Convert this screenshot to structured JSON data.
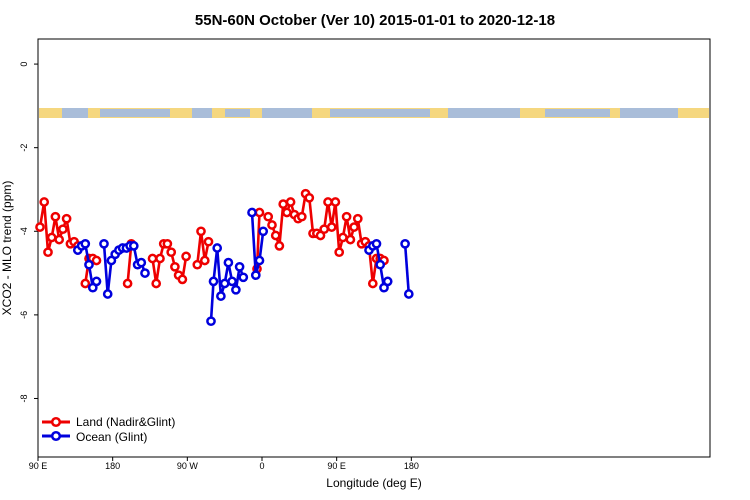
{
  "chart_data": {
    "type": "line",
    "title": "55N-60N October (Ver 10)   2015-01-01 to 2020-12-18",
    "xlabel": "Longitude (deg E)",
    "ylabel": "XCO2 - MLO trend (ppm)",
    "xlim": [
      -90,
      180
    ],
    "ylim": [
      -9.4,
      0.6
    ],
    "xticks": [
      {
        "value": -90,
        "label": "90 E"
      },
      {
        "value": -60,
        "label": "180"
      },
      {
        "value": -30,
        "label": "90 W"
      },
      {
        "value": 0,
        "label": "0"
      },
      {
        "value": 30,
        "label": "90 E"
      },
      {
        "value": 60,
        "label": "180"
      }
    ],
    "yticks": [
      0,
      -2,
      -4,
      -6,
      -8
    ],
    "legend_position": "bottom-left",
    "colors": {
      "land": "#ee0000",
      "ocean": "#0000dd",
      "land_band": "#f5d77f",
      "ocean_band": "#a9bdd9"
    },
    "series": [
      {
        "name": "Land (Nadir&Glint)",
        "color": "#ee0000",
        "segments": [
          [
            [
              -89.2,
              -3.9
            ],
            [
              -87.5,
              -3.3
            ],
            [
              -86.0,
              -4.5
            ],
            [
              -84.5,
              -4.15
            ],
            [
              -83.0,
              -3.65
            ],
            [
              -81.5,
              -4.2
            ],
            [
              -80.0,
              -3.95
            ],
            [
              -78.5,
              -3.7
            ],
            [
              -77.0,
              -4.3
            ],
            [
              -75.5,
              -4.25
            ],
            [
              -74.0,
              -4.35
            ]
          ],
          [
            [
              -71.0,
              -5.25
            ],
            [
              -69.5,
              -4.65
            ],
            [
              -68.0,
              -4.65
            ],
            [
              -66.5,
              -4.7
            ]
          ],
          [
            [
              -54.0,
              -5.25
            ],
            [
              -52.5,
              -4.3
            ]
          ],
          [
            [
              -44.0,
              -4.65
            ],
            [
              -42.5,
              -5.25
            ],
            [
              -41.0,
              -4.65
            ],
            [
              -39.5,
              -4.3
            ],
            [
              -38.0,
              -4.3
            ],
            [
              -36.5,
              -4.5
            ],
            [
              -35.0,
              -4.85
            ],
            [
              -33.5,
              -5.05
            ],
            [
              -32.0,
              -5.15
            ],
            [
              -30.5,
              -4.6
            ]
          ],
          [
            [
              -26.0,
              -4.8
            ],
            [
              -24.5,
              -4.0
            ],
            [
              -23.0,
              -4.7
            ],
            [
              -21.5,
              -4.25
            ]
          ],
          [
            [
              -2.0,
              -4.9
            ],
            [
              -1.0,
              -3.55
            ]
          ],
          [
            [
              2.5,
              -3.65
            ],
            [
              4.0,
              -3.85
            ],
            [
              5.5,
              -4.1
            ],
            [
              7.0,
              -4.35
            ],
            [
              8.5,
              -3.35
            ],
            [
              10.0,
              -3.55
            ],
            [
              11.5,
              -3.3
            ],
            [
              13.0,
              -3.6
            ],
            [
              14.5,
              -3.7
            ],
            [
              16.0,
              -3.65
            ],
            [
              17.5,
              -3.1
            ],
            [
              19.0,
              -3.2
            ],
            [
              20.5,
              -4.05
            ],
            [
              22.0,
              -4.05
            ],
            [
              23.5,
              -4.1
            ],
            [
              25.0,
              -3.95
            ],
            [
              26.5,
              -3.3
            ],
            [
              28.0,
              -3.9
            ],
            [
              29.5,
              -3.3
            ],
            [
              31.0,
              -4.5
            ],
            [
              32.5,
              -4.15
            ],
            [
              34.0,
              -3.65
            ],
            [
              35.5,
              -4.2
            ],
            [
              37.0,
              -3.9
            ],
            [
              38.5,
              -3.7
            ],
            [
              40.0,
              -4.3
            ],
            [
              41.5,
              -4.25
            ],
            [
              43.0,
              -4.35
            ],
            [
              44.5,
              -5.25
            ],
            [
              46.0,
              -4.65
            ],
            [
              47.5,
              -4.65
            ],
            [
              49.0,
              -4.7
            ]
          ]
        ]
      },
      {
        "name": "Ocean (Glint)",
        "color": "#0000dd",
        "segments": [
          [
            [
              -74.0,
              -4.45
            ],
            [
              -72.5,
              -4.35
            ],
            [
              -71.0,
              -4.3
            ],
            [
              -69.5,
              -4.8
            ],
            [
              -68.0,
              -5.35
            ],
            [
              -66.5,
              -5.2
            ]
          ],
          [
            [
              -63.5,
              -4.3
            ],
            [
              -62.0,
              -5.5
            ],
            [
              -60.5,
              -4.7
            ],
            [
              -59.0,
              -4.55
            ],
            [
              -57.5,
              -4.45
            ],
            [
              -56.0,
              -4.4
            ],
            [
              -54.5,
              -4.4
            ],
            [
              -53.0,
              -4.35
            ],
            [
              -51.5,
              -4.35
            ],
            [
              -50.0,
              -4.8
            ],
            [
              -48.5,
              -4.75
            ],
            [
              -47.0,
              -5.0
            ]
          ],
          [
            [
              -20.5,
              -6.15
            ],
            [
              -19.5,
              -5.2
            ],
            [
              -18.0,
              -4.4
            ],
            [
              -16.5,
              -5.55
            ],
            [
              -15.0,
              -5.25
            ],
            [
              -13.5,
              -4.75
            ],
            [
              -12.0,
              -5.2
            ],
            [
              -10.5,
              -5.4
            ],
            [
              -9.0,
              -4.85
            ],
            [
              -7.5,
              -5.1
            ]
          ],
          [
            [
              -4.0,
              -3.55
            ],
            [
              -2.5,
              -5.05
            ],
            [
              -1.0,
              -4.7
            ],
            [
              0.5,
              -4.0
            ]
          ],
          [
            [
              43.0,
              -4.45
            ],
            [
              44.5,
              -4.35
            ],
            [
              46.0,
              -4.3
            ],
            [
              47.5,
              -4.8
            ],
            [
              49.0,
              -5.35
            ],
            [
              50.5,
              -5.2
            ]
          ],
          [
            [
              57.5,
              -4.3
            ],
            [
              59.0,
              -5.5
            ]
          ]
        ]
      }
    ]
  }
}
